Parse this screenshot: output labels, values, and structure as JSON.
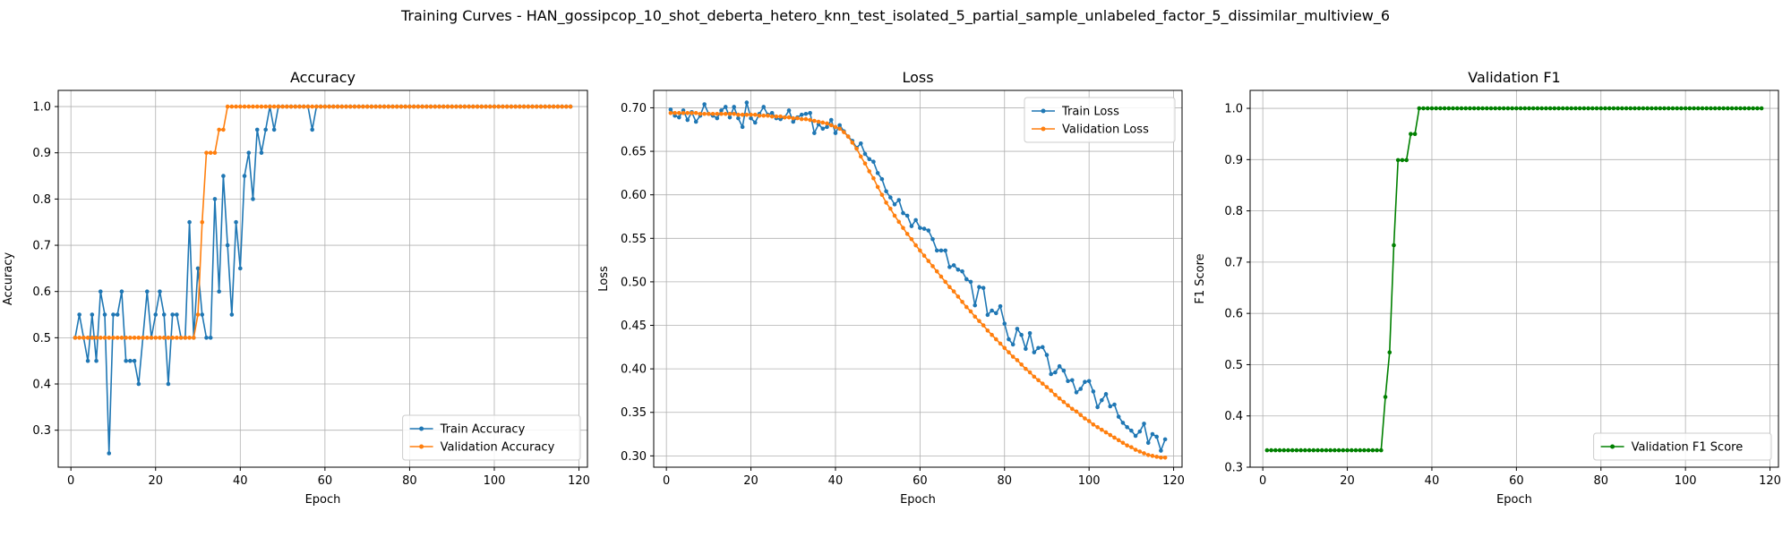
{
  "figure": {
    "title": "Training Curves - HAN_gossipcop_10_shot_deberta_hetero_knn_test_isolated_5_partial_sample_unlabeled_factor_5_dissimilar_multiview_6"
  },
  "chart_data": [
    {
      "type": "line",
      "title": "Accuracy",
      "xlabel": "Epoch",
      "ylabel": "Accuracy",
      "xlim": [
        -3,
        122
      ],
      "ylim": [
        0.22,
        1.035
      ],
      "xticks": [
        0,
        20,
        40,
        60,
        80,
        100,
        120
      ],
      "yticks": [
        0.3,
        0.4,
        0.5,
        0.6,
        0.7,
        0.8,
        0.9,
        1.0
      ],
      "ytick_labels": [
        "0.3",
        "0.4",
        "0.5",
        "0.6",
        "0.7",
        "0.8",
        "0.9",
        "1.0"
      ],
      "grid": true,
      "legend_position": "lower-right",
      "series": [
        {
          "name": "Train Accuracy",
          "color": "#1f77b4",
          "x_start": 1,
          "values": [
            0.5,
            0.55,
            0.5,
            0.45,
            0.55,
            0.45,
            0.6,
            0.55,
            0.25,
            0.55,
            0.55,
            0.6,
            0.45,
            0.45,
            0.45,
            0.4,
            0.5,
            0.6,
            0.5,
            0.55,
            0.6,
            0.55,
            0.4,
            0.55,
            0.55,
            0.5,
            0.5,
            0.75,
            0.5,
            0.65,
            0.55,
            0.5,
            0.5,
            0.8,
            0.6,
            0.85,
            0.7,
            0.55,
            0.75,
            0.65,
            0.85,
            0.9,
            0.8,
            0.95,
            0.9,
            0.95,
            1.0,
            0.95,
            1.0,
            1.0,
            1.0,
            1.0,
            1.0,
            1.0,
            1.0,
            1.0,
            0.95,
            1.0,
            1.0,
            1.0,
            1.0,
            1.0,
            1.0,
            1.0,
            1.0,
            1.0,
            1.0,
            1.0,
            1.0,
            1.0,
            1.0,
            1.0,
            1.0,
            1.0,
            1.0,
            1.0,
            1.0,
            1.0,
            1.0,
            1.0,
            1.0,
            1.0,
            1.0,
            1.0,
            1.0,
            1.0,
            1.0,
            1.0,
            1.0,
            1.0,
            1.0,
            1.0,
            1.0,
            1.0,
            1.0,
            1.0,
            1.0,
            1.0,
            1.0,
            1.0,
            1.0,
            1.0,
            1.0,
            1.0,
            1.0,
            1.0,
            1.0,
            1.0,
            1.0,
            1.0,
            1.0,
            1.0,
            1.0,
            1.0,
            1.0,
            1.0,
            1.0,
            1.0
          ]
        },
        {
          "name": "Validation Accuracy",
          "color": "#ff7f0e",
          "x_start": 1,
          "values": [
            0.5,
            0.5,
            0.5,
            0.5,
            0.5,
            0.5,
            0.5,
            0.5,
            0.5,
            0.5,
            0.5,
            0.5,
            0.5,
            0.5,
            0.5,
            0.5,
            0.5,
            0.5,
            0.5,
            0.5,
            0.5,
            0.5,
            0.5,
            0.5,
            0.5,
            0.5,
            0.5,
            0.5,
            0.5,
            0.55,
            0.75,
            0.9,
            0.9,
            0.9,
            0.95,
            0.95,
            1.0,
            1.0,
            1.0,
            1.0,
            1.0,
            1.0,
            1.0,
            1.0,
            1.0,
            1.0,
            1.0,
            1.0,
            1.0,
            1.0,
            1.0,
            1.0,
            1.0,
            1.0,
            1.0,
            1.0,
            1.0,
            1.0,
            1.0,
            1.0,
            1.0,
            1.0,
            1.0,
            1.0,
            1.0,
            1.0,
            1.0,
            1.0,
            1.0,
            1.0,
            1.0,
            1.0,
            1.0,
            1.0,
            1.0,
            1.0,
            1.0,
            1.0,
            1.0,
            1.0,
            1.0,
            1.0,
            1.0,
            1.0,
            1.0,
            1.0,
            1.0,
            1.0,
            1.0,
            1.0,
            1.0,
            1.0,
            1.0,
            1.0,
            1.0,
            1.0,
            1.0,
            1.0,
            1.0,
            1.0,
            1.0,
            1.0,
            1.0,
            1.0,
            1.0,
            1.0,
            1.0,
            1.0,
            1.0,
            1.0,
            1.0,
            1.0,
            1.0,
            1.0,
            1.0,
            1.0,
            1.0,
            1.0
          ]
        }
      ]
    },
    {
      "type": "line",
      "title": "Loss",
      "xlabel": "Epoch",
      "ylabel": "Loss",
      "xlim": [
        -3,
        122
      ],
      "ylim": [
        0.287,
        0.72
      ],
      "xticks": [
        0,
        20,
        40,
        60,
        80,
        100,
        120
      ],
      "yticks": [
        0.3,
        0.35,
        0.4,
        0.45,
        0.5,
        0.55,
        0.6,
        0.65,
        0.7
      ],
      "ytick_labels": [
        "0.30",
        "0.35",
        "0.40",
        "0.45",
        "0.50",
        "0.55",
        "0.60",
        "0.65",
        "0.70"
      ],
      "grid": true,
      "legend_position": "upper-right",
      "series": [
        {
          "name": "Train Loss",
          "color": "#1f77b4",
          "x_start": 1,
          "values": [
            0.698,
            0.691,
            0.689,
            0.697,
            0.686,
            0.695,
            0.684,
            0.691,
            0.704,
            0.693,
            0.691,
            0.688,
            0.697,
            0.701,
            0.689,
            0.701,
            0.688,
            0.678,
            0.706,
            0.688,
            0.683,
            0.693,
            0.701,
            0.692,
            0.694,
            0.688,
            0.687,
            0.689,
            0.697,
            0.684,
            0.689,
            0.692,
            0.693,
            0.694,
            0.671,
            0.681,
            0.676,
            0.678,
            0.686,
            0.671,
            0.68,
            0.673,
            0.667,
            0.662,
            0.654,
            0.659,
            0.647,
            0.641,
            0.638,
            0.625,
            0.618,
            0.604,
            0.597,
            0.589,
            0.594,
            0.579,
            0.576,
            0.564,
            0.571,
            0.562,
            0.561,
            0.559,
            0.549,
            0.536,
            0.536,
            0.536,
            0.517,
            0.519,
            0.514,
            0.512,
            0.503,
            0.5,
            0.473,
            0.494,
            0.493,
            0.462,
            0.467,
            0.464,
            0.472,
            0.452,
            0.434,
            0.428,
            0.446,
            0.439,
            0.423,
            0.441,
            0.419,
            0.424,
            0.425,
            0.416,
            0.394,
            0.396,
            0.403,
            0.398,
            0.386,
            0.387,
            0.373,
            0.377,
            0.385,
            0.386,
            0.374,
            0.356,
            0.364,
            0.371,
            0.357,
            0.359,
            0.345,
            0.338,
            0.333,
            0.329,
            0.323,
            0.328,
            0.337,
            0.315,
            0.325,
            0.322,
            0.306,
            0.319
          ]
        },
        {
          "name": "Validation Loss",
          "color": "#ff7f0e",
          "x_start": 1,
          "values": [
            0.694,
            0.694,
            0.694,
            0.694,
            0.694,
            0.694,
            0.694,
            0.693,
            0.693,
            0.693,
            0.693,
            0.693,
            0.693,
            0.693,
            0.693,
            0.693,
            0.692,
            0.692,
            0.692,
            0.692,
            0.692,
            0.691,
            0.691,
            0.691,
            0.69,
            0.69,
            0.69,
            0.689,
            0.689,
            0.688,
            0.688,
            0.687,
            0.687,
            0.686,
            0.685,
            0.684,
            0.683,
            0.682,
            0.68,
            0.678,
            0.676,
            0.672,
            0.667,
            0.66,
            0.653,
            0.644,
            0.636,
            0.627,
            0.619,
            0.609,
            0.6,
            0.591,
            0.584,
            0.576,
            0.569,
            0.562,
            0.555,
            0.549,
            0.542,
            0.536,
            0.53,
            0.524,
            0.518,
            0.512,
            0.506,
            0.5,
            0.494,
            0.489,
            0.483,
            0.477,
            0.471,
            0.466,
            0.46,
            0.455,
            0.45,
            0.444,
            0.439,
            0.434,
            0.429,
            0.424,
            0.419,
            0.414,
            0.41,
            0.405,
            0.4,
            0.396,
            0.391,
            0.387,
            0.383,
            0.379,
            0.375,
            0.37,
            0.366,
            0.362,
            0.358,
            0.354,
            0.351,
            0.347,
            0.343,
            0.34,
            0.336,
            0.333,
            0.33,
            0.327,
            0.324,
            0.321,
            0.318,
            0.315,
            0.312,
            0.31,
            0.307,
            0.305,
            0.303,
            0.301,
            0.3,
            0.299,
            0.298,
            0.298
          ]
        }
      ]
    },
    {
      "type": "line",
      "title": "Validation F1",
      "xlabel": "Epoch",
      "ylabel": "F1 Score",
      "xlim": [
        -3,
        122
      ],
      "ylim": [
        0.3,
        1.035
      ],
      "xticks": [
        0,
        20,
        40,
        60,
        80,
        100,
        120
      ],
      "yticks": [
        0.3,
        0.4,
        0.5,
        0.6,
        0.7,
        0.8,
        0.9,
        1.0
      ],
      "ytick_labels": [
        "0.3",
        "0.4",
        "0.5",
        "0.6",
        "0.7",
        "0.8",
        "0.9",
        "1.0"
      ],
      "grid": true,
      "legend_position": "lower-right",
      "series": [
        {
          "name": "Validation F1 Score",
          "color": "#008000",
          "x_start": 1,
          "values": [
            0.333,
            0.333,
            0.333,
            0.333,
            0.333,
            0.333,
            0.333,
            0.333,
            0.333,
            0.333,
            0.333,
            0.333,
            0.333,
            0.333,
            0.333,
            0.333,
            0.333,
            0.333,
            0.333,
            0.333,
            0.333,
            0.333,
            0.333,
            0.333,
            0.333,
            0.333,
            0.333,
            0.333,
            0.437,
            0.524,
            0.733,
            0.899,
            0.899,
            0.899,
            0.95,
            0.95,
            1.0,
            1.0,
            1.0,
            1.0,
            1.0,
            1.0,
            1.0,
            1.0,
            1.0,
            1.0,
            1.0,
            1.0,
            1.0,
            1.0,
            1.0,
            1.0,
            1.0,
            1.0,
            1.0,
            1.0,
            1.0,
            1.0,
            1.0,
            1.0,
            1.0,
            1.0,
            1.0,
            1.0,
            1.0,
            1.0,
            1.0,
            1.0,
            1.0,
            1.0,
            1.0,
            1.0,
            1.0,
            1.0,
            1.0,
            1.0,
            1.0,
            1.0,
            1.0,
            1.0,
            1.0,
            1.0,
            1.0,
            1.0,
            1.0,
            1.0,
            1.0,
            1.0,
            1.0,
            1.0,
            1.0,
            1.0,
            1.0,
            1.0,
            1.0,
            1.0,
            1.0,
            1.0,
            1.0,
            1.0,
            1.0,
            1.0,
            1.0,
            1.0,
            1.0,
            1.0,
            1.0,
            1.0,
            1.0,
            1.0,
            1.0,
            1.0,
            1.0,
            1.0,
            1.0,
            1.0,
            1.0,
            1.0
          ]
        }
      ]
    }
  ]
}
